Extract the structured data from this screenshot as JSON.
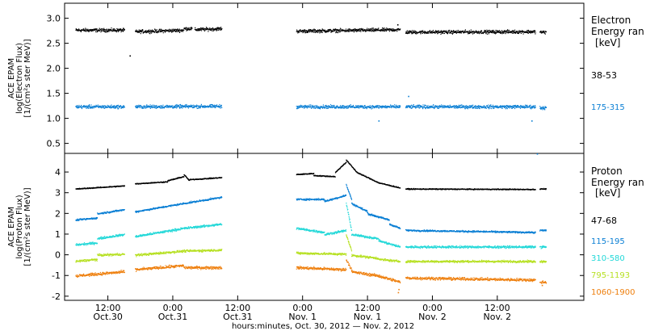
{
  "chart_data": [
    {
      "type": "scatter",
      "instrument_label": "ACE EPAM",
      "ylabel_line1": "log(Electron Flux)",
      "ylabel_line2": "[1/(cm²s ster MeV)]",
      "ylim": [
        0.3,
        3.3
      ],
      "yticks": [
        {
          "v": 3.0,
          "label": "3.0"
        },
        {
          "v": 2.5,
          "label": "2.5"
        },
        {
          "v": 2.0,
          "label": "2.0"
        },
        {
          "v": 1.5,
          "label": "1.5"
        },
        {
          "v": 1.0,
          "label": "1.0"
        },
        {
          "v": 0.5,
          "label": "0.5"
        }
      ],
      "legend_title_line1": "Electron",
      "legend_title_line2": "Energy ran",
      "legend_unit": "[keV]",
      "series": [
        {
          "name": "38-53",
          "color": "#000000",
          "noise": 0.05,
          "segments": [
            [
              0,
              9,
              2.77,
              2.77
            ],
            [
              11,
              20,
              2.74,
              2.77
            ],
            [
              20,
              21.5,
              2.8,
              2.8
            ],
            [
              22,
              27,
              2.78,
              2.8
            ],
            [
              40.8,
              60,
              2.75,
              2.78
            ],
            [
              61,
              85,
              2.73,
              2.74
            ],
            [
              85.8,
              87,
              2.73,
              2.73
            ]
          ],
          "outliers": [
            {
              "x": 10,
              "y": 2.26
            },
            {
              "x": 59.5,
              "y": 2.88
            }
          ]
        },
        {
          "name": "175-315",
          "color": "#0a7fd4",
          "noise": 0.05,
          "segments": [
            [
              0,
              9,
              1.24,
              1.24
            ],
            [
              11,
              27,
              1.24,
              1.25
            ],
            [
              40.8,
              60,
              1.24,
              1.24
            ],
            [
              61,
              85,
              1.24,
              1.24
            ],
            [
              85.8,
              87,
              1.22,
              1.22
            ]
          ],
          "outliers": [
            {
              "x": 56,
              "y": 0.96
            },
            {
              "x": 61.5,
              "y": 1.45
            },
            {
              "x": 84.3,
              "y": 0.96
            },
            {
              "x": 85.3,
              "y": 0.3
            }
          ]
        }
      ]
    },
    {
      "type": "scatter",
      "instrument_label": "ACE EPAM",
      "ylabel_line1": "log(Proton Flux)",
      "ylabel_line2": "[1/(cm²s ster MeV)]",
      "ylim": [
        -2.2,
        4.9
      ],
      "yticks": [
        {
          "v": 4,
          "label": "4"
        },
        {
          "v": 3,
          "label": "3"
        },
        {
          "v": 2,
          "label": "2"
        },
        {
          "v": 1,
          "label": "1"
        },
        {
          "v": 0,
          "label": "0"
        },
        {
          "v": -1,
          "label": "-1"
        },
        {
          "v": -2,
          "label": "-2"
        }
      ],
      "legend_title_line1": "Proton",
      "legend_title_line2": "Energy ran",
      "legend_unit": "[keV]",
      "series": [
        {
          "name": "47-68",
          "color": "#000000",
          "noise": 0.035,
          "segments": [
            [
              0,
              9,
              3.2,
              3.35
            ],
            [
              11,
              17,
              3.45,
              3.55
            ],
            [
              17,
              20,
              3.6,
              3.8
            ],
            [
              20,
              21,
              3.9,
              3.6
            ],
            [
              21,
              27,
              3.65,
              3.75
            ],
            [
              40.8,
              44,
              3.9,
              3.95
            ],
            [
              44,
              48,
              3.85,
              3.8
            ],
            [
              48,
              50,
              4.0,
              4.5
            ],
            [
              50,
              52,
              4.6,
              4.0
            ],
            [
              52,
              56,
              4.0,
              3.5
            ],
            [
              56,
              60,
              3.5,
              3.25
            ],
            [
              61,
              85,
              3.2,
              3.18
            ],
            [
              85.8,
              87,
              3.2,
              3.2
            ]
          ]
        },
        {
          "name": "115-195",
          "color": "#0a7fd4",
          "noise": 0.06,
          "segments": [
            [
              0,
              4,
              1.7,
              1.8
            ],
            [
              4,
              9,
              2.0,
              2.2
            ],
            [
              11,
              20,
              2.1,
              2.5
            ],
            [
              20,
              27,
              2.5,
              2.8
            ],
            [
              40.8,
              46,
              2.7,
              2.7
            ],
            [
              46,
              50,
              2.6,
              2.9
            ],
            [
              50,
              51,
              3.4,
              2.7
            ],
            [
              51,
              54,
              2.5,
              2.1
            ],
            [
              54,
              58,
              2.0,
              1.7
            ],
            [
              58,
              60,
              1.5,
              1.3
            ],
            [
              61,
              85,
              1.2,
              1.1
            ],
            [
              85.8,
              87,
              1.2,
              1.2
            ]
          ]
        },
        {
          "name": "310-580",
          "color": "#22d8d8",
          "noise": 0.08,
          "segments": [
            [
              0,
              4,
              0.5,
              0.6
            ],
            [
              4,
              9,
              0.8,
              1.0
            ],
            [
              11,
              20,
              0.9,
              1.3
            ],
            [
              20,
              27,
              1.3,
              1.5
            ],
            [
              40.8,
              46,
              1.3,
              1.1
            ],
            [
              46,
              50,
              1.0,
              1.2
            ],
            [
              50,
              51,
              2.5,
              1.2
            ],
            [
              51,
              56,
              1.0,
              0.8
            ],
            [
              56,
              60,
              0.7,
              0.4
            ],
            [
              61,
              85,
              0.4,
              0.4
            ],
            [
              85.8,
              87,
              0.4,
              0.4
            ]
          ]
        },
        {
          "name": "795-1193",
          "color": "#b6e022",
          "noise": 0.08,
          "segments": [
            [
              0,
              4,
              -0.3,
              -0.2
            ],
            [
              4,
              9,
              0.0,
              0.05
            ],
            [
              11,
              20,
              0.0,
              0.2
            ],
            [
              20,
              27,
              0.2,
              0.25
            ],
            [
              40.8,
              50,
              0.1,
              0.05
            ],
            [
              50,
              51,
              1.0,
              0.2
            ],
            [
              51,
              56,
              0.0,
              -0.15
            ],
            [
              56,
              60,
              -0.2,
              -0.3
            ],
            [
              61,
              85,
              -0.3,
              -0.3
            ],
            [
              85.8,
              87,
              -0.3,
              -0.3
            ]
          ]
        },
        {
          "name": "1060-1900",
          "color": "#ee7f0d",
          "noise": 0.1,
          "segments": [
            [
              0,
              9,
              -1.0,
              -0.8
            ],
            [
              11,
              20,
              -0.7,
              -0.5
            ],
            [
              20,
              27,
              -0.6,
              -0.6
            ],
            [
              40.8,
              50,
              -0.6,
              -0.7
            ],
            [
              50,
              51,
              -0.2,
              -0.7
            ],
            [
              51,
              56,
              -0.8,
              -1.0
            ],
            [
              56,
              60,
              -1.0,
              -1.3
            ],
            [
              61,
              85,
              -1.1,
              -1.2
            ],
            [
              85.8,
              87,
              -1.3,
              -1.3
            ]
          ],
          "outliers": [
            {
              "x": 59.6,
              "y": -1.8
            },
            {
              "x": 59.7,
              "y": -1.65
            },
            {
              "x": 86.2,
              "y": -1.45
            }
          ]
        }
      ]
    }
  ],
  "x_axis": {
    "range_hours": [
      -2,
      94
    ],
    "ticks": [
      {
        "h": 6,
        "time": "12:00",
        "date": "Oct.30"
      },
      {
        "h": 18,
        "time": "0:00",
        "date": "Oct.31"
      },
      {
        "h": 30,
        "time": "12:00",
        "date": "Oct.31"
      },
      {
        "h": 42,
        "time": "0:00",
        "date": "Nov. 1"
      },
      {
        "h": 54,
        "time": "12:00",
        "date": "Nov. 1"
      },
      {
        "h": 66,
        "time": "0:00",
        "date": "Nov. 2"
      },
      {
        "h": 78,
        "time": "12:00",
        "date": "Nov. 2"
      }
    ],
    "caption": "hours:minutes, Oct. 30, 2012 — Nov.  2, 2012"
  }
}
